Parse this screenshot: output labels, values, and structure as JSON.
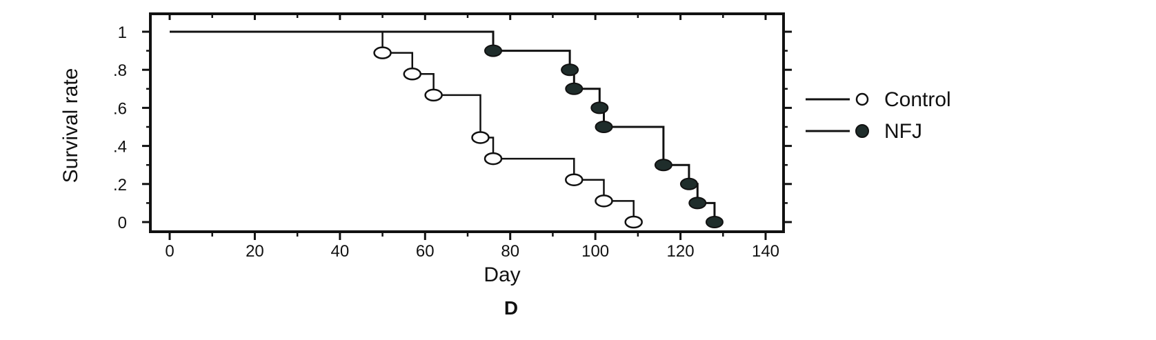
{
  "chart_data": {
    "type": "line",
    "xlabel": "Day",
    "ylabel": "Survival rate",
    "panel_label": "D",
    "xlim": [
      0,
      140
    ],
    "ylim": [
      0,
      1
    ],
    "x_ticks": [
      0,
      20,
      40,
      60,
      80,
      100,
      120,
      140
    ],
    "x_tick_labels": [
      "0",
      "20",
      "40",
      "60",
      "80",
      "100",
      "120",
      "140"
    ],
    "y_ticks": [
      0,
      0.2,
      0.4,
      0.6,
      0.8,
      1
    ],
    "y_tick_labels": [
      "0",
      ".2",
      ".4",
      ".6",
      ".8",
      "1"
    ],
    "grid": false,
    "legend_position": "right",
    "series": [
      {
        "name": "Control",
        "marker": "open-circle",
        "color": "#ffffff",
        "line_color": "#111111",
        "x": [
          0,
          50,
          57,
          62,
          73,
          76,
          95,
          102,
          109
        ],
        "y": [
          1,
          0.889,
          0.778,
          0.667,
          0.444,
          0.333,
          0.222,
          0.111,
          0
        ],
        "markers_at": [
          1,
          2,
          3,
          4,
          5,
          6,
          7,
          8
        ]
      },
      {
        "name": "NFJ",
        "marker": "filled-circle",
        "color": "#1f2d2b",
        "line_color": "#111111",
        "x": [
          0,
          76,
          94,
          95,
          101,
          102,
          116,
          122,
          124,
          128
        ],
        "y": [
          1,
          0.9,
          0.8,
          0.7,
          0.6,
          0.5,
          0.3,
          0.2,
          0.1,
          0
        ],
        "markers_at": [
          1,
          2,
          3,
          4,
          5,
          6,
          7,
          8,
          9
        ]
      }
    ]
  }
}
